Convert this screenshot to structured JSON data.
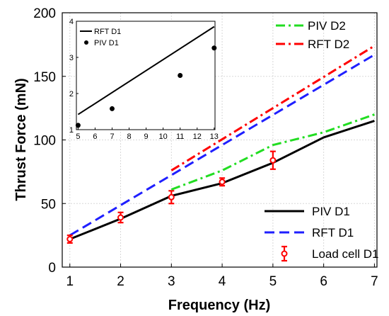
{
  "chart_data": [
    {
      "type": "line",
      "xlabel": "Frequency (Hz)",
      "ylabel": "Thrust Force (mN)",
      "xlim": [
        0.85,
        7.05
      ],
      "ylim": [
        0,
        200
      ],
      "xticks": [
        1,
        2,
        3,
        4,
        5,
        6,
        7
      ],
      "yticks": [
        0,
        50,
        100,
        150,
        200
      ],
      "grid": true,
      "series": [
        {
          "name": "PIV D1",
          "color": "#000000",
          "style": "solid",
          "x": [
            1,
            2,
            3,
            4,
            5,
            6,
            7
          ],
          "y": [
            22,
            38,
            56,
            66,
            82,
            102,
            115
          ]
        },
        {
          "name": "RFT D1",
          "color": "#1f1fff",
          "style": "dashed",
          "x": [
            1,
            7
          ],
          "y": [
            25,
            167
          ]
        },
        {
          "name": "Load cell D1",
          "color": "#ff0000",
          "style": "markers-errorbars",
          "x": [
            1,
            2,
            3,
            4,
            5
          ],
          "y": [
            22,
            39,
            55,
            67,
            84
          ],
          "error": [
            3,
            4,
            5,
            3,
            7
          ]
        },
        {
          "name": "PIV D2",
          "color": "#22dd22",
          "style": "dashdot",
          "x": [
            3,
            4,
            5,
            6,
            7
          ],
          "y": [
            61,
            76,
            96,
            106,
            120
          ]
        },
        {
          "name": "RFT D2",
          "color": "#ff0000",
          "style": "dashdot",
          "x": [
            3,
            7
          ],
          "y": [
            76,
            174
          ]
        }
      ],
      "legends": [
        {
          "placement": "top-right",
          "entries": [
            "PIV D2",
            "RFT D2"
          ]
        },
        {
          "placement": "bottom-right",
          "entries": [
            "PIV D1",
            "RFT D1",
            "Load cell D1"
          ]
        }
      ]
    },
    {
      "type": "line",
      "placement": "inset-top-left",
      "xlim": [
        4.9,
        13.05
      ],
      "ylim": [
        1,
        4
      ],
      "xticks": [
        5,
        6,
        7,
        8,
        9,
        10,
        11,
        12,
        13
      ],
      "yticks": [
        1,
        2,
        3,
        4
      ],
      "grid": false,
      "series": [
        {
          "name": "RFT D1",
          "color": "#000000",
          "style": "solid",
          "x": [
            5,
            13
          ],
          "y": [
            1.42,
            3.85
          ]
        },
        {
          "name": "PIV D1",
          "color": "#000000",
          "style": "markers",
          "x": [
            5,
            7,
            11,
            13
          ],
          "y": [
            1.12,
            1.58,
            2.5,
            3.26
          ]
        }
      ],
      "legend": {
        "placement": "top-left",
        "entries": [
          "RFT D1",
          "PIV D1"
        ]
      }
    }
  ]
}
